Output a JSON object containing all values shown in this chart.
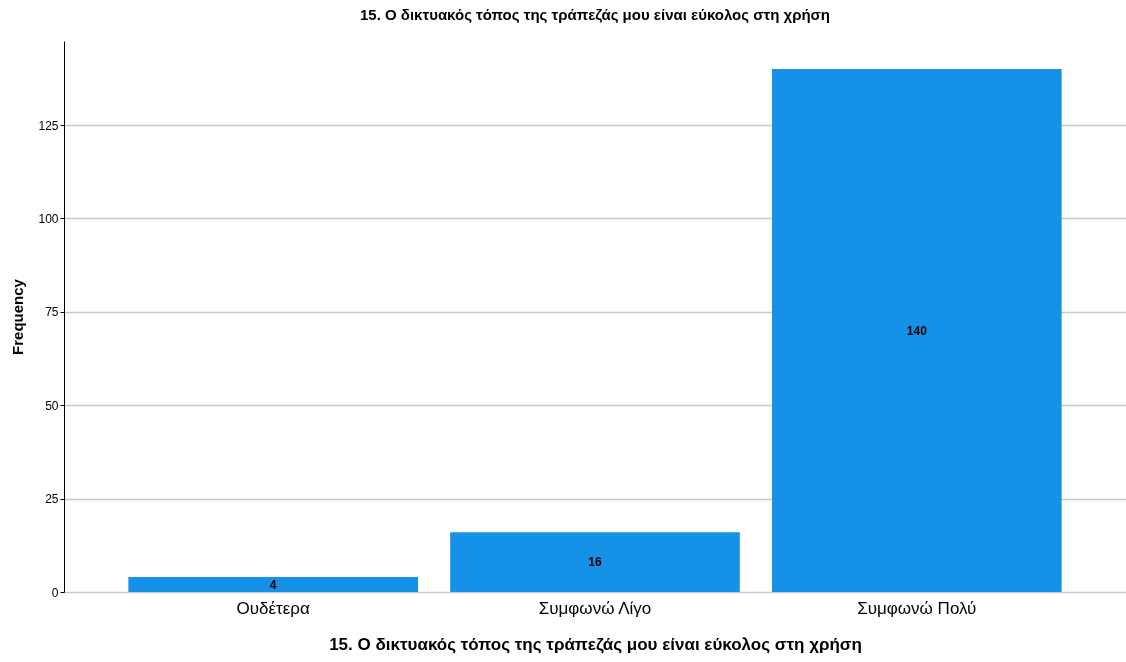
{
  "chart_data": {
    "type": "bar",
    "title": "15. Ο δικτυακός τόπος της τράπεζάς μου είναι εύκολος στη χρήση",
    "xlabel": "15. Ο δικτυακός τόπος της τράπεζάς μου είναι εύκολος στη χρήση",
    "ylabel": "Frequency",
    "categories": [
      "Ουδέτερα",
      "Συμφωνώ Λίγο",
      "Συμφωνώ Πολύ"
    ],
    "values": [
      4,
      16,
      140
    ],
    "color": "#1591e8",
    "ylim": [
      0,
      147.5
    ],
    "yticks": [
      0,
      25,
      50,
      75,
      100,
      125
    ],
    "grid": "y",
    "data_labels": true
  }
}
